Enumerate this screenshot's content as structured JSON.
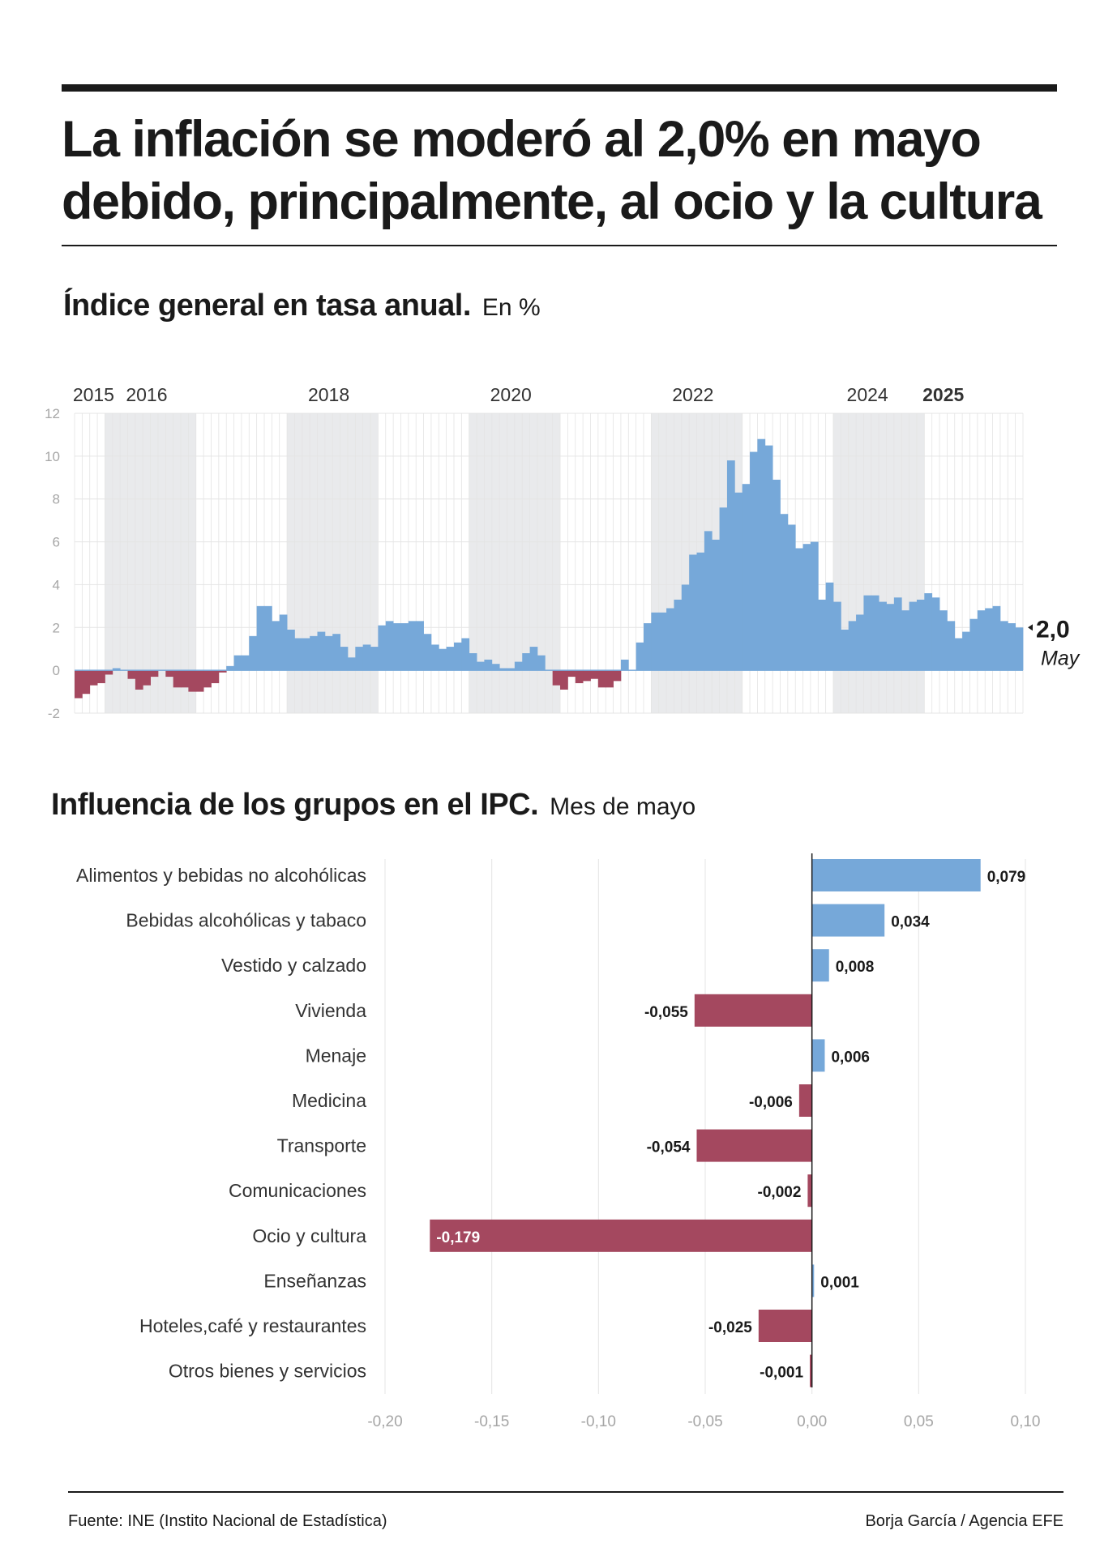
{
  "header": {
    "title_line1": "La inflación se moderó al 2,0% en mayo",
    "title_line2": "debido, principalmente, al ocio y la cultura"
  },
  "colors": {
    "positive": "#76a8d9",
    "negative": "#a4485f",
    "band": "#e9eaec",
    "grid": "#e4e4e4",
    "axis_text": "#a6a6a6",
    "text": "#1a1a1a"
  },
  "chart1_title": {
    "main": "Índice general en tasa anual.",
    "unit": "En %"
  },
  "chart2_title": {
    "main": "Influencia de los grupos en el IPC.",
    "unit": "Mes de mayo"
  },
  "chart_data": [
    {
      "type": "bar",
      "title": "Índice general en tasa anual.",
      "subtitle": "En %",
      "ylim": [
        -2,
        12
      ],
      "yticks": [
        "12",
        "10",
        "8",
        "6",
        "4",
        "2",
        "0",
        "-2"
      ],
      "year_labels": [
        {
          "label": "2015",
          "month_index": 2,
          "bold": false
        },
        {
          "label": "2016",
          "month_index": 9,
          "bold": false
        },
        {
          "label": "2018",
          "month_index": 33,
          "bold": false
        },
        {
          "label": "2020",
          "month_index": 57,
          "bold": false
        },
        {
          "label": "2022",
          "month_index": 81,
          "bold": false
        },
        {
          "label": "2024",
          "month_index": 104,
          "bold": false
        },
        {
          "label": "2025",
          "month_index": 114,
          "bold": true
        }
      ],
      "shaded_years_start_index": [
        4,
        28,
        52,
        76,
        100
      ],
      "start": "2015-01",
      "end": "2025-05",
      "values": [
        -1.3,
        -1.1,
        -0.7,
        -0.6,
        -0.2,
        0.1,
        0.0,
        -0.4,
        -0.9,
        -0.7,
        -0.3,
        0.0,
        -0.3,
        -0.8,
        -0.8,
        -1.0,
        -1.0,
        -0.8,
        -0.6,
        -0.1,
        0.2,
        0.7,
        0.7,
        1.6,
        3.0,
        3.0,
        2.3,
        2.6,
        1.9,
        1.5,
        1.5,
        1.6,
        1.8,
        1.6,
        1.7,
        1.1,
        0.6,
        1.1,
        1.2,
        1.1,
        2.1,
        2.3,
        2.2,
        2.2,
        2.3,
        2.3,
        1.7,
        1.2,
        1.0,
        1.1,
        1.3,
        1.5,
        0.8,
        0.4,
        0.5,
        0.3,
        0.1,
        0.1,
        0.4,
        0.8,
        1.1,
        0.7,
        0.0,
        -0.7,
        -0.9,
        -0.3,
        -0.6,
        -0.5,
        -0.4,
        -0.8,
        -0.8,
        -0.5,
        0.5,
        0.0,
        1.3,
        2.2,
        2.7,
        2.7,
        2.9,
        3.3,
        4.0,
        5.4,
        5.5,
        6.5,
        6.1,
        7.6,
        9.8,
        8.3,
        8.7,
        10.2,
        10.8,
        10.5,
        8.9,
        7.3,
        6.8,
        5.7,
        5.9,
        6.0,
        3.3,
        4.1,
        3.2,
        1.9,
        2.3,
        2.6,
        3.5,
        3.5,
        3.2,
        3.1,
        3.4,
        2.8,
        3.2,
        3.3,
        3.6,
        3.4,
        2.8,
        2.3,
        1.5,
        1.8,
        2.4,
        2.8,
        2.9,
        3.0,
        2.3,
        2.2,
        2.0
      ],
      "last_value_label": "2,0",
      "last_month_label": "May"
    },
    {
      "type": "bar",
      "orientation": "horizontal",
      "title": "Influencia de los grupos en el IPC.",
      "subtitle": "Mes de mayo",
      "xlim": [
        -0.2,
        0.1
      ],
      "xticks": [
        {
          "value": -0.2,
          "label": "-0,20"
        },
        {
          "value": -0.15,
          "label": "-0,15"
        },
        {
          "value": -0.1,
          "label": "-0,10"
        },
        {
          "value": -0.05,
          "label": "-0,05"
        },
        {
          "value": 0.0,
          "label": "0,00"
        },
        {
          "value": 0.05,
          "label": "0,05"
        },
        {
          "value": 0.1,
          "label": "0,10"
        }
      ],
      "categories": [
        "Alimentos y bebidas no alcohólicas",
        "Bebidas alcohólicas y tabaco",
        "Vestido y calzado",
        "Vivienda",
        "Menaje",
        "Medicina",
        "Transporte",
        "Comunicaciones",
        "Ocio y cultura",
        "Enseñanzas",
        "Hoteles,café y restaurantes",
        "Otros bienes y servicios"
      ],
      "values": [
        0.079,
        0.034,
        0.008,
        -0.055,
        0.006,
        -0.006,
        -0.054,
        -0.002,
        -0.179,
        0.001,
        -0.025,
        -0.001
      ],
      "value_labels": [
        "0,079",
        "0,034",
        "0,008",
        "-0,055",
        "0,006",
        "-0,006",
        "-0,054",
        "-0,002",
        "-0,179",
        "0,001",
        "-0,025",
        "-0,001"
      ]
    }
  ],
  "footer": {
    "source": "Fuente: INE (Instito Nacional de Estadística)",
    "credit": "Borja García / Agencia EFE"
  }
}
